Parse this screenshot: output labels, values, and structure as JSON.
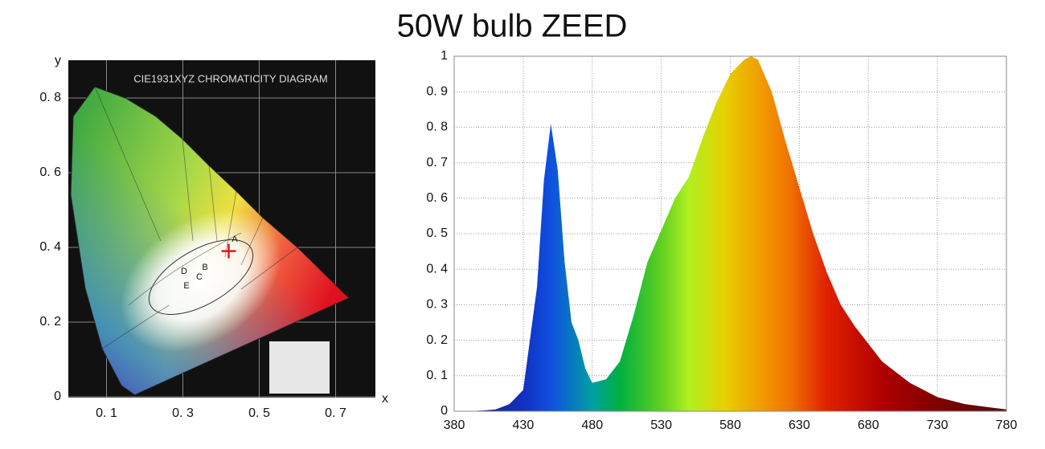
{
  "title": "50W bulb ZEED",
  "chart_data": [
    {
      "type": "chromaticity",
      "title": "CIE1931XYZ CHROMATICITY DIAGRAM",
      "x_label": "x",
      "y_label": "y",
      "xlim": [
        0,
        0.8
      ],
      "ylim": [
        0,
        0.9
      ],
      "xticks": [
        {
          "value": 0.1,
          "label": "0. 1"
        },
        {
          "value": 0.3,
          "label": "0. 3"
        },
        {
          "value": 0.5,
          "label": "0. 5"
        },
        {
          "value": 0.7,
          "label": "0. 7"
        }
      ],
      "yticks": [
        0,
        {
          "value": 0.2,
          "label": "0. 2"
        },
        {
          "value": 0.4,
          "label": "0. 4"
        },
        {
          "value": 0.6,
          "label": "0. 6"
        },
        {
          "value": 0.8,
          "label": "0. 8"
        }
      ],
      "points": {
        "x": [
          0.42
        ],
        "y": [
          0.39
        ],
        "color": "#e01818"
      },
      "labels": [
        "A",
        "B",
        "C",
        "D",
        "E"
      ]
    },
    {
      "type": "area",
      "x": [
        380,
        390,
        400,
        410,
        420,
        430,
        440,
        445,
        450,
        455,
        460,
        465,
        470,
        475,
        480,
        490,
        500,
        510,
        520,
        530,
        540,
        550,
        560,
        570,
        580,
        590,
        595,
        600,
        610,
        620,
        630,
        640,
        650,
        660,
        670,
        680,
        690,
        700,
        710,
        720,
        730,
        740,
        750,
        760,
        770,
        780
      ],
      "values": [
        0,
        0,
        0.002,
        0.005,
        0.02,
        0.06,
        0.35,
        0.65,
        0.81,
        0.68,
        0.42,
        0.25,
        0.2,
        0.12,
        0.08,
        0.09,
        0.14,
        0.27,
        0.42,
        0.51,
        0.6,
        0.66,
        0.77,
        0.87,
        0.95,
        0.99,
        1.0,
        0.99,
        0.9,
        0.76,
        0.63,
        0.5,
        0.39,
        0.3,
        0.24,
        0.19,
        0.14,
        0.11,
        0.08,
        0.06,
        0.04,
        0.03,
        0.02,
        0.015,
        0.01,
        0.005
      ],
      "xlim": [
        380,
        780
      ],
      "ylim": [
        0,
        1
      ],
      "xticks": [
        380,
        430,
        480,
        530,
        580,
        630,
        680,
        730,
        780
      ],
      "yticks": [
        0,
        {
          "value": 0.1,
          "label": "0. 1"
        },
        {
          "value": 0.2,
          "label": "0. 2"
        },
        {
          "value": 0.3,
          "label": "0. 3"
        },
        {
          "value": 0.4,
          "label": "0. 4"
        },
        {
          "value": 0.5,
          "label": "0. 5"
        },
        {
          "value": 0.6,
          "label": "0. 6"
        },
        {
          "value": 0.7,
          "label": "0. 7"
        },
        {
          "value": 0.8,
          "label": "0. 8"
        },
        {
          "value": 0.9,
          "label": "0. 9"
        },
        1
      ],
      "grid": true
    }
  ]
}
